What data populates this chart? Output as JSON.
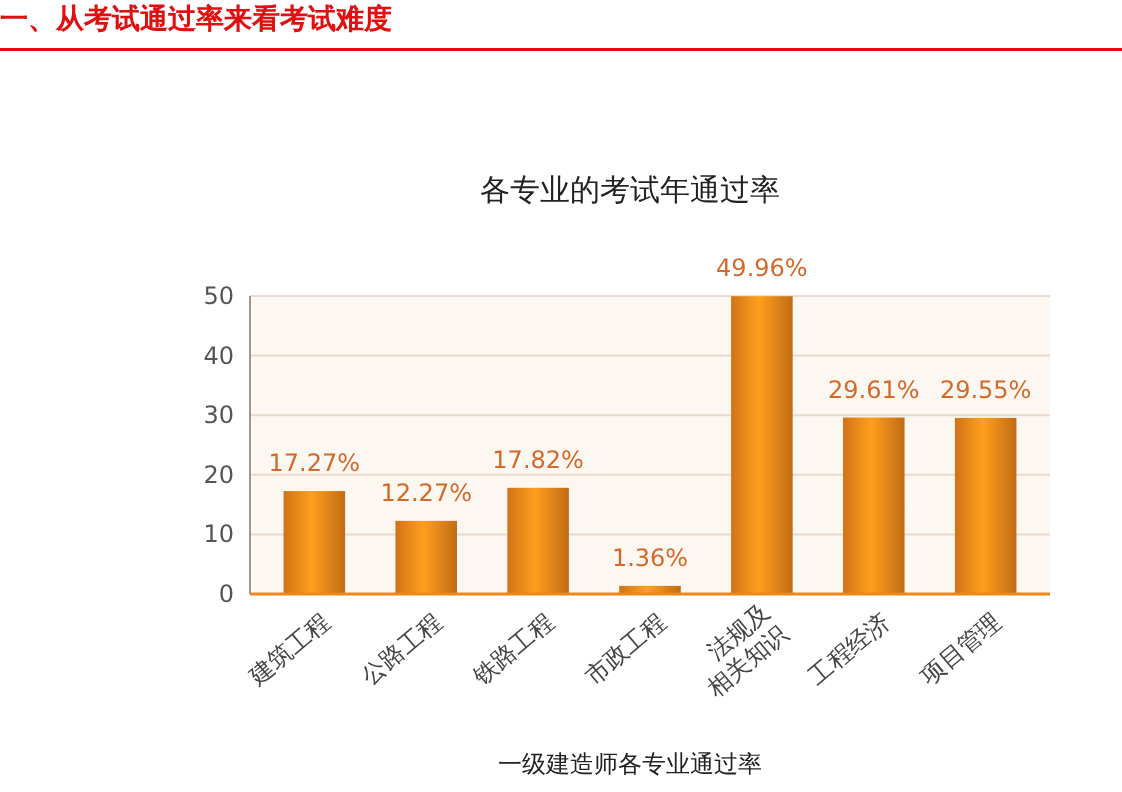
{
  "chart_data": {
    "type": "bar",
    "title": "各专业的考试年通过率",
    "annotations": [
      "一、从考试通过率来看考试难度",
      "一级建造师各专业通过率"
    ],
    "categories": [
      "建筑工程",
      "公路工程",
      "铁路工程",
      "市政工程",
      "法规及相关知识",
      "工程经济",
      "项目管理"
    ],
    "values": [
      17.27,
      12.27,
      17.82,
      1.36,
      49.96,
      29.61,
      29.55
    ],
    "value_labels": [
      "17.27%",
      "12.27%",
      "17.82%",
      "1.36%",
      "49.96%",
      "29.61%",
      "29.55%"
    ],
    "color": "#f08519",
    "ylim": [
      0,
      50
    ],
    "yticks": [
      0,
      10,
      20,
      30,
      40,
      50
    ],
    "grid": "y"
  }
}
